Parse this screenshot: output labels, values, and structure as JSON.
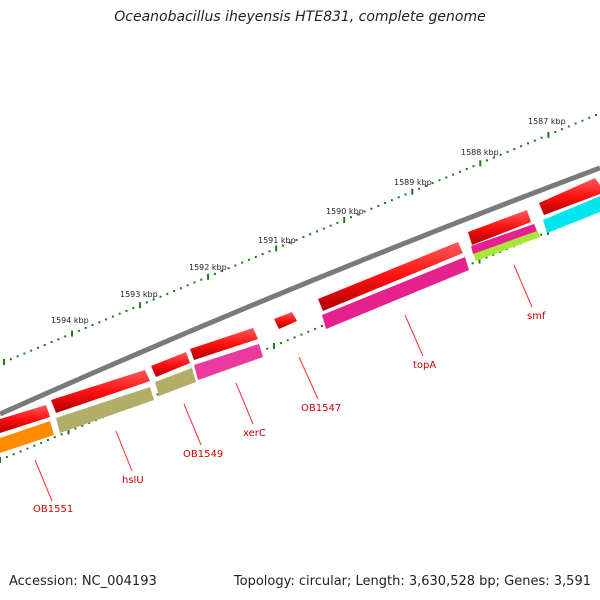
{
  "header": {
    "title": "Oceanobacillus iheyensis HTE831, complete genome"
  },
  "footer": {
    "accession": "Accession: NC_004193",
    "summary": "Topology: circular; Length: 3,630,528 bp; Genes: 3,591"
  },
  "colors": {
    "backbone": "#808080",
    "tick": "#1a7a1a",
    "cds": "#ff1a1a",
    "cds_shade": "#b00000",
    "label": "#cc0000",
    "leader_line": "#ff3030"
  },
  "ruler_labels": [
    "1587 kbp",
    "1588 kbp",
    "1589 kbp",
    "1590 kbp",
    "1591 kbp",
    "1592 kbp",
    "1593 kbp",
    "1594 kbp"
  ],
  "gene_labels": [
    {
      "name": "smf"
    },
    {
      "name": "topA"
    },
    {
      "name": "OB1547"
    },
    {
      "name": "xerC"
    },
    {
      "name": "OB1549"
    },
    {
      "name": "hslU"
    },
    {
      "name": "OB1551"
    }
  ],
  "cog_colors": [
    "#00e5ee",
    "#a8e63c",
    "#e6208c",
    "#e6208c",
    "#b3ad6a",
    "#ff8c00"
  ]
}
